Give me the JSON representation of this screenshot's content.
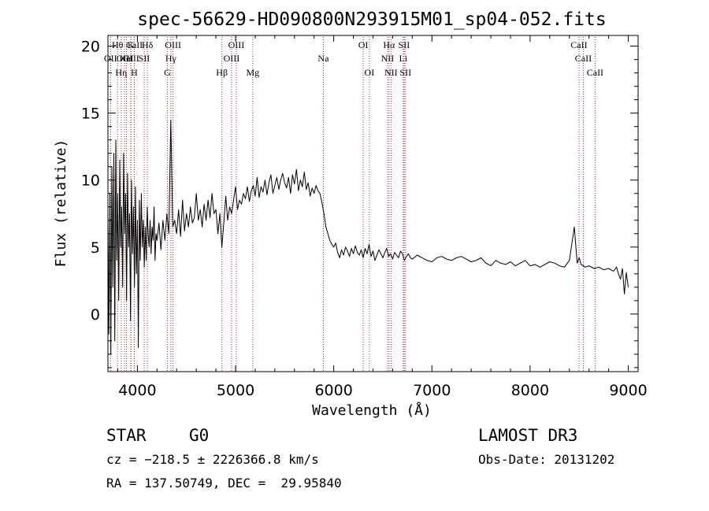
{
  "chart_data": {
    "type": "line",
    "title": "spec-56629-HD090800N293915M01_sp04-052.fits",
    "xlabel": "Wavelength (Å)",
    "ylabel": "Flux (relative)",
    "xlim": [
      3700,
      9100
    ],
    "ylim": [
      -4.3,
      20.8
    ],
    "xticks": [
      4000,
      5000,
      6000,
      7000,
      8000,
      9000
    ],
    "yticks": [
      0,
      5,
      10,
      15,
      20
    ],
    "series": [
      {
        "name": "flux",
        "x": [
          3700,
          3710,
          3720,
          3730,
          3740,
          3750,
          3760,
          3770,
          3780,
          3790,
          3800,
          3810,
          3820,
          3830,
          3840,
          3850,
          3860,
          3870,
          3880,
          3890,
          3900,
          3910,
          3920,
          3930,
          3940,
          3950,
          3960,
          3970,
          3980,
          3990,
          4000,
          4010,
          4020,
          4030,
          4040,
          4050,
          4060,
          4070,
          4080,
          4090,
          4100,
          4110,
          4120,
          4130,
          4140,
          4150,
          4160,
          4170,
          4180,
          4190,
          4200,
          4220,
          4240,
          4260,
          4280,
          4300,
          4320,
          4340,
          4360,
          4380,
          4400,
          4420,
          4440,
          4460,
          4480,
          4500,
          4520,
          4540,
          4560,
          4580,
          4600,
          4620,
          4640,
          4660,
          4680,
          4700,
          4720,
          4740,
          4760,
          4780,
          4800,
          4820,
          4840,
          4860,
          4880,
          4900,
          4920,
          4940,
          4960,
          4980,
          5000,
          5020,
          5040,
          5060,
          5080,
          5100,
          5120,
          5140,
          5160,
          5180,
          5200,
          5220,
          5240,
          5260,
          5280,
          5300,
          5320,
          5340,
          5360,
          5380,
          5400,
          5420,
          5440,
          5460,
          5480,
          5500,
          5520,
          5540,
          5560,
          5580,
          5600,
          5620,
          5640,
          5660,
          5680,
          5700,
          5720,
          5740,
          5760,
          5780,
          5800,
          5820,
          5840,
          5860,
          5880,
          5900,
          5920,
          5940,
          5960,
          5980,
          6000,
          6020,
          6040,
          6060,
          6080,
          6100,
          6120,
          6140,
          6160,
          6180,
          6200,
          6220,
          6240,
          6260,
          6280,
          6300,
          6320,
          6340,
          6360,
          6380,
          6400,
          6420,
          6440,
          6460,
          6480,
          6500,
          6520,
          6540,
          6560,
          6580,
          6600,
          6620,
          6640,
          6660,
          6680,
          6700,
          6720,
          6740,
          6760,
          6780,
          6800,
          6850,
          6900,
          6950,
          7000,
          7050,
          7100,
          7150,
          7200,
          7250,
          7300,
          7350,
          7400,
          7450,
          7500,
          7550,
          7600,
          7650,
          7700,
          7750,
          7800,
          7850,
          7900,
          7950,
          8000,
          8050,
          8100,
          8150,
          8200,
          8250,
          8300,
          8350,
          8400,
          8450,
          8480,
          8500,
          8520,
          8540,
          8560,
          8600,
          8650,
          8700,
          8750,
          8800,
          8850,
          8880,
          8900,
          8920,
          8940,
          8960,
          8980,
          9000
        ],
        "y": [
          8.0,
          -1.5,
          9.0,
          -3.0,
          11.0,
          2.0,
          12.0,
          -2.0,
          13.0,
          4.0,
          9.0,
          1.0,
          11.5,
          5.0,
          8.0,
          2.0,
          12.0,
          6.0,
          9.0,
          1.0,
          10.5,
          5.0,
          7.5,
          -0.5,
          10.0,
          4.5,
          8.0,
          2.0,
          9.5,
          3.0,
          7.0,
          -2.5,
          8.5,
          4.0,
          9.0,
          5.0,
          7.0,
          3.5,
          6.5,
          4.0,
          8.0,
          6.0,
          5.0,
          7.0,
          4.5,
          6.5,
          5.5,
          8.0,
          4.0,
          6.0,
          5.5,
          6.8,
          4.8,
          7.0,
          5.5,
          7.5,
          6.0,
          14.5,
          6.5,
          7.0,
          6.0,
          7.8,
          5.8,
          8.5,
          6.2,
          7.5,
          6.5,
          8.0,
          6.8,
          7.2,
          9.0,
          7.0,
          7.8,
          6.5,
          8.2,
          7.0,
          8.5,
          7.2,
          9.0,
          7.5,
          7.8,
          6.0,
          7.5,
          5.0,
          6.8,
          8.8,
          7.0,
          8.0,
          7.5,
          8.5,
          9.5,
          7.8,
          8.5,
          8.2,
          9.0,
          8.6,
          9.5,
          8.4,
          9.2,
          9.6,
          8.8,
          10.2,
          8.7,
          9.5,
          9.1,
          10.0,
          8.9,
          9.8,
          10.4,
          9.0,
          9.6,
          10.2,
          9.3,
          10.0,
          10.5,
          9.8,
          9.4,
          10.2,
          9.0,
          10.4,
          9.7,
          10.8,
          9.2,
          10.0,
          9.5,
          10.6,
          9.3,
          9.8,
          8.8,
          9.4,
          9.0,
          9.6,
          9.2,
          9.0,
          8.3,
          7.5,
          6.5,
          6.0,
          5.5,
          5.2,
          5.0,
          5.3,
          4.6,
          4.2,
          4.8,
          4.4,
          5.0,
          4.7,
          4.3,
          4.9,
          4.5,
          5.1,
          4.6,
          4.4,
          4.8,
          4.2,
          4.9,
          4.5,
          5.2,
          4.3,
          4.7,
          4.0,
          4.4,
          4.8,
          4.5,
          4.2,
          4.6,
          4.9,
          4.3,
          4.5,
          4.1,
          4.6,
          4.4,
          4.2,
          4.7,
          4.5,
          4.0,
          4.3,
          4.5,
          4.2,
          4.1,
          4.4,
          4.2,
          4.0,
          3.9,
          4.2,
          4.3,
          4.1,
          4.0,
          4.2,
          4.3,
          4.1,
          3.9,
          4.0,
          4.2,
          3.8,
          3.6,
          4.0,
          3.8,
          3.7,
          3.9,
          3.6,
          3.8,
          4.0,
          3.6,
          3.7,
          3.5,
          3.7,
          3.9,
          3.8,
          3.6,
          3.5,
          4.0,
          6.5,
          3.8,
          4.2,
          3.7,
          3.6,
          3.5,
          3.6,
          3.4,
          3.5,
          3.3,
          3.4,
          3.2,
          3.5,
          3.0,
          2.6,
          3.4,
          1.5,
          3.1,
          2.0
        ]
      }
    ],
    "lines": [
      {
        "label": "CaII",
        "x": 3934,
        "row": 1
      },
      {
        "label": "CaII",
        "x": 3969,
        "row": 0
      },
      {
        "label": "Hθ",
        "x": 3798,
        "row": 0
      },
      {
        "label": "OII",
        "x": 3727,
        "row": 1
      },
      {
        "label": "OIII",
        "x": 3869,
        "row": 1
      },
      {
        "label": "HeI",
        "x": 3889,
        "row": 1
      },
      {
        "label": "Hη",
        "x": 3835,
        "row": 2
      },
      {
        "label": "H",
        "x": 3968,
        "row": 2
      },
      {
        "label": "K",
        "x": 3934,
        "row": 0
      },
      {
        "label": "SII",
        "x": 4069,
        "row": 1
      },
      {
        "label": "Hδ",
        "x": 4102,
        "row": 0
      },
      {
        "label": "OIII",
        "x": 4363,
        "row": 0
      },
      {
        "label": "Hγ",
        "x": 4341,
        "row": 1
      },
      {
        "label": "G",
        "x": 4305,
        "row": 2
      },
      {
        "label": "Hβ",
        "x": 4861,
        "row": 2
      },
      {
        "label": "OIII",
        "x": 4959,
        "row": 1
      },
      {
        "label": "OIII",
        "x": 5007,
        "row": 0
      },
      {
        "label": "Mg",
        "x": 5175,
        "row": 2
      },
      {
        "label": "Na",
        "x": 5894,
        "row": 1
      },
      {
        "label": "OI",
        "x": 6300,
        "row": 0
      },
      {
        "label": "OI",
        "x": 6363,
        "row": 2
      },
      {
        "label": "NII",
        "x": 6548,
        "row": 1
      },
      {
        "label": "Hα",
        "x": 6563,
        "row": 0
      },
      {
        "label": "NII",
        "x": 6583,
        "row": 2
      },
      {
        "label": "SII",
        "x": 6716,
        "row": 0
      },
      {
        "label": "Li",
        "x": 6708,
        "row": 1
      },
      {
        "label": "SII",
        "x": 6731,
        "row": 2
      },
      {
        "label": "CaII",
        "x": 8498,
        "row": 0
      },
      {
        "label": "CaII",
        "x": 8542,
        "row": 1
      },
      {
        "label": "CaII",
        "x": 8662,
        "row": 2
      }
    ]
  },
  "info": {
    "object_class": "STAR",
    "subclass": "G0",
    "survey": "LAMOST DR3",
    "redshift": "cz = −218.5 ± 2226366.8 km/s",
    "obs_date": "Obs-Date: 20131202",
    "coords": "RA = 137.50749, DEC =  29.95840"
  }
}
